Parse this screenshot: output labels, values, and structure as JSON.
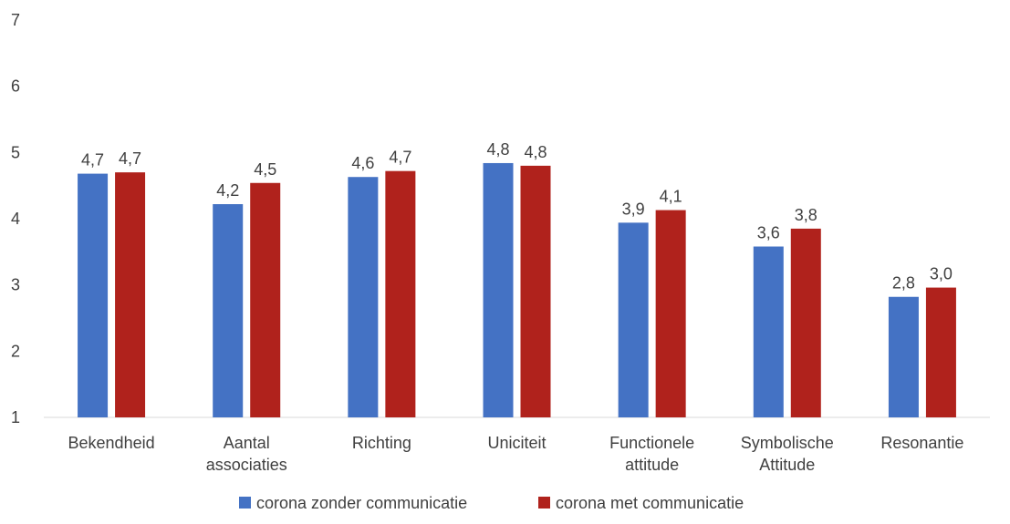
{
  "chart_data": {
    "type": "bar",
    "categories": [
      [
        "Bekendheid"
      ],
      [
        "Aantal",
        "associaties"
      ],
      [
        "Richting"
      ],
      [
        "Uniciteit"
      ],
      [
        "Functionele",
        "attitude"
      ],
      [
        "Symbolische",
        "Attitude"
      ],
      [
        "Resonantie"
      ]
    ],
    "series": [
      {
        "name": "corona zonder communicatie",
        "color": "#4472C4",
        "values": [
          4.68,
          4.22,
          4.63,
          4.84,
          3.94,
          3.58,
          2.82
        ],
        "labels": [
          "4,7",
          "4,2",
          "4,6",
          "4,8",
          "3,9",
          "3,6",
          "2,8"
        ]
      },
      {
        "name": "corona met communicatie",
        "color": "#B0221C",
        "values": [
          4.7,
          4.54,
          4.72,
          4.8,
          4.13,
          3.85,
          2.96
        ],
        "labels": [
          "4,7",
          "4,5",
          "4,7",
          "4,8",
          "4,1",
          "3,8",
          "3,0"
        ]
      }
    ],
    "ylim": [
      1,
      7
    ],
    "yticks": [
      1,
      2,
      3,
      4,
      5,
      6,
      7
    ],
    "grid": false,
    "legend_position": "bottom",
    "title": "",
    "xlabel": "",
    "ylabel": ""
  }
}
